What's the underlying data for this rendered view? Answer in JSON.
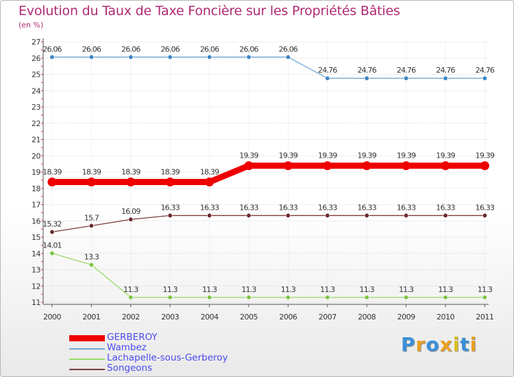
{
  "title": "Evolution du Taux de Taxe Foncière sur les Propriétés Bâties",
  "subtitle": "(en %)",
  "logo_text": "Proxiti",
  "chart_data": {
    "type": "line",
    "title": "Evolution du Taux de Taxe Foncière sur les Propriétés Bâties",
    "ylabel": "(en %)",
    "xlabel": "",
    "ylim": [
      11,
      27
    ],
    "yticks": [
      "11",
      "12",
      "13",
      "14",
      "15",
      "16",
      "17",
      "18",
      "19",
      "20",
      "21",
      "22",
      "23",
      "24",
      "25",
      "26",
      "27"
    ],
    "categories": [
      "2000",
      "2001",
      "2002",
      "2003",
      "2004",
      "2005",
      "2006",
      "2007",
      "2008",
      "2009",
      "2010",
      "2011"
    ],
    "series": [
      {
        "name": "GERBEROY",
        "color": "#ee0000",
        "emphasis": true,
        "values": [
          18.39,
          18.39,
          18.39,
          18.39,
          18.39,
          19.39,
          19.39,
          19.39,
          19.39,
          19.39,
          19.39,
          19.39
        ],
        "labels": [
          "18.39",
          "18.39",
          "18.39",
          "18.39",
          "18.39",
          "19.39",
          "19.39",
          "19.39",
          "19.39",
          "19.39",
          "19.39",
          "19.39"
        ]
      },
      {
        "name": "Wambez",
        "color": "#6fa8d6",
        "marker_color": "#3f86c4",
        "values": [
          26.06,
          26.06,
          26.06,
          26.06,
          26.06,
          26.06,
          26.06,
          24.76,
          24.76,
          24.76,
          24.76,
          24.76
        ],
        "labels": [
          "26.06",
          "26.06",
          "26.06",
          "26.06",
          "26.06",
          "26.06",
          "26.06",
          "24.76",
          "24.76",
          "24.76",
          "24.76",
          "24.76"
        ]
      },
      {
        "name": "Lachapelle-sous-Gerberoy",
        "color": "#9ad866",
        "marker_color": "#7dc341",
        "values": [
          14.01,
          13.3,
          11.3,
          11.3,
          11.3,
          11.3,
          11.3,
          11.3,
          11.3,
          11.3,
          11.3,
          11.3
        ],
        "labels": [
          "14.01",
          "13.3",
          "11.3",
          "11.3",
          "11.3",
          "11.3",
          "11.3",
          "11.3",
          "11.3",
          "11.3",
          "11.3",
          "11.3"
        ]
      },
      {
        "name": "Songeons",
        "color": "#7a3b3b",
        "marker_color": "#6b2a2a",
        "values": [
          15.32,
          15.7,
          16.09,
          16.33,
          16.33,
          16.33,
          16.33,
          16.33,
          16.33,
          16.33,
          16.33,
          16.33
        ],
        "labels": [
          "15.32",
          "15.7",
          "16.09",
          "16.33",
          "16.33",
          "16.33",
          "16.33",
          "16.33",
          "16.33",
          "16.33",
          "16.33",
          "16.33"
        ]
      }
    ],
    "legend_position": "bottom-left"
  }
}
